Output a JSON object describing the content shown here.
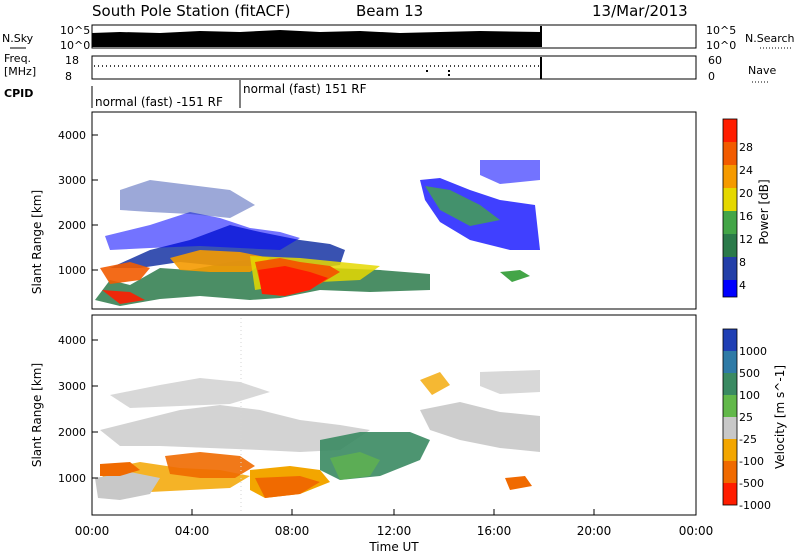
{
  "header": {
    "station": "South Pole Station (fitACF)",
    "beam": "Beam 13",
    "date": "13/Mar/2013"
  },
  "top_panels": {
    "nsky_label": "N.Sky",
    "nsky_ticks": [
      "10^5",
      "10^0"
    ],
    "nsky_right_ticks": [
      "10^5",
      "10^0"
    ],
    "nsearch_label": "N.Search",
    "freq_label_1": "Freq.",
    "freq_label_2": "[MHz]",
    "freq_ticks": [
      "18",
      "8"
    ],
    "nave_ticks": [
      "60",
      "0"
    ],
    "nave_label": "Nave",
    "cpid_label": "CPID",
    "cpid_segments": [
      "normal (fast) -151 RF",
      "normal (fast) 151 RF"
    ]
  },
  "chart_data": [
    {
      "type": "heatmap",
      "name": "power",
      "ylabel": "Slant Range [km]",
      "y_ticks": [
        "4000",
        "3000",
        "2000",
        "1000"
      ],
      "colorbar_label": "Power [dB]",
      "colorbar_ticks": [
        "28",
        "24",
        "20",
        "16",
        "12",
        "8",
        "4"
      ],
      "colors": [
        "#0000ff",
        "#233fa8",
        "#2b7a4a",
        "#43a547",
        "#e5d800",
        "#f59a00",
        "#f25b00",
        "#ff1d00"
      ]
    },
    {
      "type": "heatmap",
      "name": "velocity",
      "ylabel": "Slant Range [km]",
      "y_ticks": [
        "4000",
        "3000",
        "2000",
        "1000"
      ],
      "colorbar_label": "Velocity [m s^-1]",
      "colorbar_ticks": [
        "1000",
        "500",
        "100",
        "25",
        "-25",
        "-100",
        "-500",
        "-1000"
      ],
      "colors": [
        "#1f3fb4",
        "#2e7aa6",
        "#3a8a62",
        "#62b84a",
        "#c8c8c8",
        "#f3a600",
        "#f06a00",
        "#ff1d00"
      ]
    }
  ],
  "x_axis": {
    "label": "Time UT",
    "ticks": [
      "00:00",
      "04:00",
      "08:00",
      "12:00",
      "16:00",
      "20:00",
      "00:00"
    ]
  }
}
